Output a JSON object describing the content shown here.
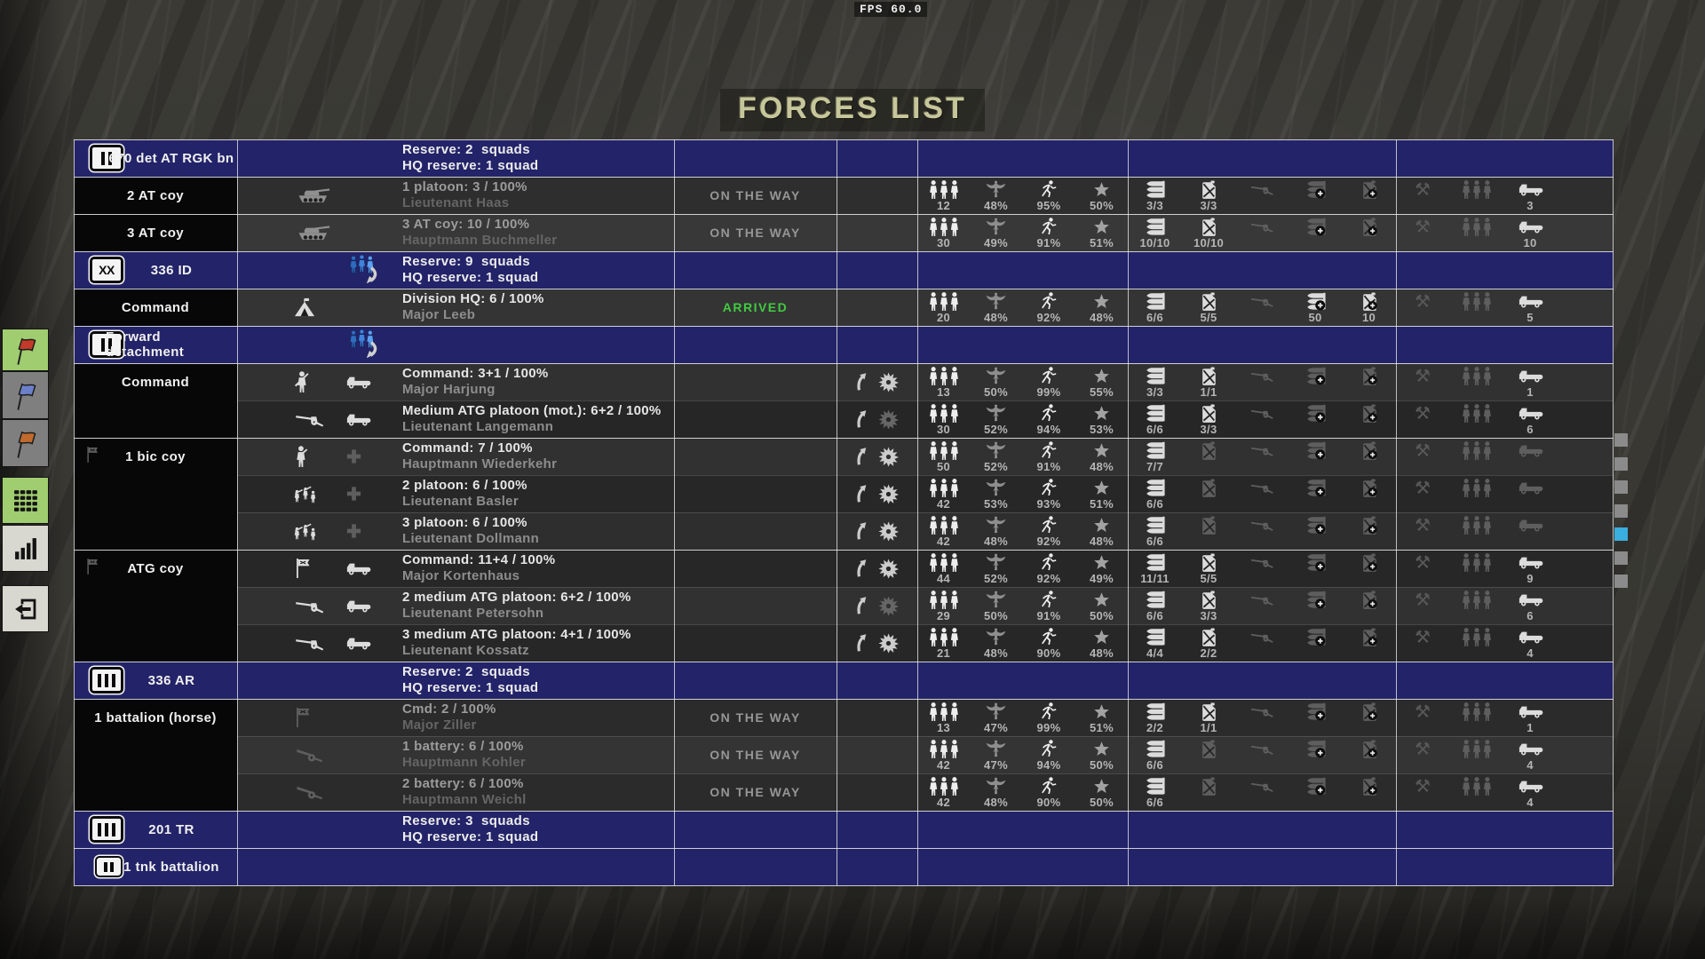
{
  "window": {
    "fps_label": "FPS 60.0",
    "title": "FORCES LIST"
  },
  "colors": {
    "hq_row_blue": "#232369",
    "arrived_green": "#41cb41",
    "on_the_way_gray": "#969696",
    "selection_cyan": "#3aaede",
    "sidebar_green": "#9fcd6f",
    "sidebar_gray": "#7f7f7f",
    "sidebar_light": "#d8d8d0",
    "flag_red": "#c23b2a",
    "flag_blue": "#6b80c9",
    "flag_orange": "#c06a2e",
    "title_khaki": "#c6c69b"
  },
  "sidebar": {
    "buttons": [
      {
        "id": "red-flag",
        "icon": "flag",
        "flag_color": "#c23b2a",
        "bg": "green"
      },
      {
        "id": "blue-flag",
        "icon": "flag",
        "flag_color": "#6b80c9",
        "bg": "gray"
      },
      {
        "id": "orange-flag",
        "icon": "flag",
        "flag_color": "#c06a2e",
        "bg": "gray"
      },
      {
        "id": "forces-list",
        "icon": "grid",
        "bg": "green"
      },
      {
        "id": "statistics",
        "icon": "bars",
        "bg": "light"
      },
      {
        "id": "exit",
        "icon": "exit",
        "bg": "light"
      }
    ]
  },
  "scrollbar": {
    "squares": [
      "gray",
      "gray",
      "gray",
      "gray",
      "cyan",
      "gray",
      "gray"
    ]
  },
  "table": {
    "rows": [
      {
        "kind": "hq",
        "badge": "II",
        "name": "670 det AT RGK bn",
        "reserve_icon": false,
        "line1": "Reserve: 2  squads",
        "line2": "HQ reserve: 1 squad"
      },
      {
        "kind": "unit",
        "name": "2 AT coy",
        "subrows": [
          {
            "bg": "#2e2e2e",
            "icon1": "tank",
            "icon1_dim": "mid",
            "line1": "1 platoon: 3 / 100%",
            "line2": "Lieutenant Haas",
            "dim": true,
            "status": "ON THE WAY",
            "stats": {
              "men": "12",
              "eagle": "48%",
              "run": "95%",
              "star": "50%",
              "ammo": "3/3",
              "fuel": "3/3",
              "truck": "3"
            }
          }
        ]
      },
      {
        "kind": "unit",
        "name": "3 AT coy",
        "subrows": [
          {
            "bg": "#383838",
            "icon1": "tank",
            "icon1_dim": "mid",
            "line1": "3 AT coy: 10 / 100%",
            "line2": "Hauptmann Buchmeller",
            "dim": true,
            "status": "ON THE WAY",
            "stats": {
              "men": "30",
              "eagle": "49%",
              "run": "91%",
              "star": "51%",
              "ammo": "10/10",
              "fuel": "10/10",
              "truck": "10"
            }
          }
        ]
      },
      {
        "kind": "hq",
        "badge": "XX",
        "name": "336 ID",
        "reserve_icon": true,
        "line1": "Reserve: 9  squads",
        "line2": "HQ reserve: 1 squad"
      },
      {
        "kind": "unit",
        "name": "Command",
        "subrows": [
          {
            "bg": "#343434",
            "icon1": "tent",
            "line1": "Division HQ: 6 / 100%",
            "line2": "Major Leeb",
            "status": "ARRIVED",
            "status_green": true,
            "stats": {
              "men": "20",
              "eagle": "48%",
              "run": "92%",
              "star": "48%",
              "ammo": "6/6",
              "fuel": "5/5",
              "ammoplus": "50",
              "fuelplus": "10",
              "truck": "5"
            }
          }
        ]
      },
      {
        "kind": "hq",
        "badge": "II",
        "name": "Forward detachment",
        "reserve_icon": true
      },
      {
        "kind": "unit",
        "name": "Command",
        "subrows": [
          {
            "bg": "#313131",
            "icon1": "soldier",
            "icon2": "truck",
            "line1": "Command: 3+1 / 100%",
            "line2": "Major Harjung",
            "orders": {
              "up": "bright",
              "burst": "bright"
            },
            "stats": {
              "men": "13",
              "eagle": "50%",
              "run": "99%",
              "star": "55%",
              "ammo": "3/3",
              "fuel": "1/1",
              "truck": "1"
            }
          },
          {
            "bg": "#262626",
            "icon1": "atgun",
            "icon2": "truck",
            "line1": "Medium ATG platoon (mot.): 6+2 / 100%",
            "line2": "Lieutenant Langemann",
            "orders": {
              "up": "bright",
              "burst": "dim"
            },
            "stats": {
              "men": "30",
              "eagle": "52%",
              "run": "94%",
              "star": "53%",
              "ammo": "6/6",
              "fuel": "3/3",
              "truck": "6"
            }
          }
        ]
      },
      {
        "kind": "unit",
        "name": "1 bic coy",
        "name_flag": true,
        "subrows": [
          {
            "bg": "#313131",
            "icon1": "officer",
            "icon2": "plus",
            "icon2_dim": "dim",
            "line1": "Command: 7 / 100%",
            "line2": "Hauptmann Wiederkehr",
            "orders": {
              "up": "bright",
              "burst": "bright"
            },
            "stats": {
              "men": "50",
              "eagle": "52%",
              "run": "91%",
              "star": "48%",
              "ammo": "7/7"
            }
          },
          {
            "bg": "#272727",
            "icon1": "squad",
            "icon2": "plus",
            "icon2_dim": "dim",
            "line1": "2 platoon: 6 / 100%",
            "line2": "Lieutenant Basler",
            "orders": {
              "up": "bright",
              "burst": "bright"
            },
            "stats": {
              "men": "42",
              "eagle": "53%",
              "run": "93%",
              "star": "51%",
              "ammo": "6/6"
            }
          },
          {
            "bg": "#2e2e2e",
            "icon1": "squad",
            "icon2": "plus",
            "icon2_dim": "dim",
            "line1": "3 platoon: 6 / 100%",
            "line2": "Lieutenant Dollmann",
            "orders": {
              "up": "bright",
              "burst": "bright"
            },
            "stats": {
              "men": "42",
              "eagle": "48%",
              "run": "92%",
              "star": "48%",
              "ammo": "6/6"
            }
          }
        ]
      },
      {
        "kind": "unit",
        "name": "ATG coy",
        "name_flag": true,
        "subrows": [
          {
            "bg": "#272727",
            "icon1": "flag",
            "icon2": "truck",
            "line1": "Command: 11+4 / 100%",
            "line2": "Major Kortenhaus",
            "orders": {
              "up": "bright",
              "burst": "bright"
            },
            "stats": {
              "men": "44",
              "eagle": "52%",
              "run": "92%",
              "star": "49%",
              "ammo": "11/11",
              "fuel": "5/5",
              "truck": "9"
            }
          },
          {
            "bg": "#313131",
            "icon1": "atgun",
            "icon2": "truck",
            "line1": "2 medium ATG platoon: 6+2 / 100%",
            "line2": "Lieutenant Petersohn",
            "orders": {
              "up": "bright",
              "burst": "dim"
            },
            "stats": {
              "men": "29",
              "eagle": "50%",
              "run": "91%",
              "star": "50%",
              "ammo": "6/6",
              "fuel": "3/3",
              "truck": "6"
            }
          },
          {
            "bg": "#272727",
            "icon1": "atgun",
            "icon2": "truck",
            "line1": "3 medium ATG platoon: 4+1 / 100%",
            "line2": "Lieutenant Kossatz",
            "orders": {
              "up": "bright",
              "burst": "bright"
            },
            "stats": {
              "men": "21",
              "eagle": "48%",
              "run": "90%",
              "star": "48%",
              "ammo": "4/4",
              "fuel": "2/2",
              "truck": "4"
            }
          }
        ]
      },
      {
        "kind": "hq",
        "badge": "III",
        "name": "336 AR",
        "line1": "Reserve: 2  squads",
        "line2": "HQ reserve: 1 squad"
      },
      {
        "kind": "unit",
        "name": "1 battalion (horse)",
        "subrows": [
          {
            "bg": "#2b2b2b",
            "icon1": "flag",
            "icon1_dim": "dim",
            "line1": "Cmd: 2 / 100%",
            "line2": "Major Ziller",
            "dim": true,
            "status": "ON THE WAY",
            "stats": {
              "men": "13",
              "eagle": "47%",
              "run": "99%",
              "star": "51%",
              "ammo": "2/2",
              "fuel": "1/1",
              "truck": "1"
            }
          },
          {
            "bg": "#343434",
            "icon1": "howitzer",
            "icon1_dim": "dim",
            "line1": "1 battery: 6 / 100%",
            "line2": "Hauptmann Kohler",
            "dim": true,
            "status": "ON THE WAY",
            "stats": {
              "men": "42",
              "eagle": "47%",
              "run": "94%",
              "star": "50%",
              "ammo": "6/6",
              "truck": "4"
            }
          },
          {
            "bg": "#2b2b2b",
            "icon1": "howitzer",
            "icon1_dim": "dim",
            "line1": "2 battery: 6 / 100%",
            "line2": "Hauptmann Weichl",
            "dim": true,
            "status": "ON THE WAY",
            "stats": {
              "men": "42",
              "eagle": "48%",
              "run": "90%",
              "star": "50%",
              "ammo": "6/6",
              "truck": "4"
            }
          }
        ]
      },
      {
        "kind": "hq",
        "badge": "III",
        "name": "201 TR",
        "line1": "Reserve: 3  squads",
        "line2": "HQ reserve: 1 squad"
      },
      {
        "kind": "hq",
        "badge": "II",
        "badge_small": true,
        "name": "1 tnk battalion"
      }
    ]
  }
}
